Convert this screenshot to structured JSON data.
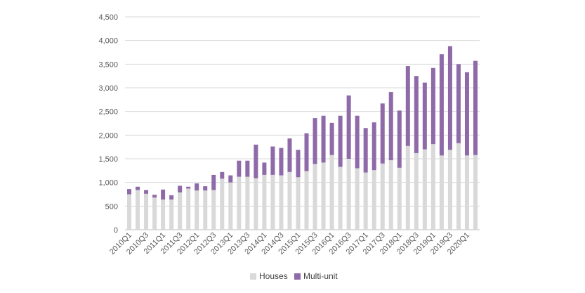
{
  "chart_data": {
    "type": "bar",
    "stacked": true,
    "categories": [
      "2010Q1",
      "2010Q2",
      "2010Q3",
      "2010Q4",
      "2011Q1",
      "2011Q2",
      "2011Q3",
      "2011Q4",
      "2012Q1",
      "2012Q2",
      "2012Q3",
      "2012Q4",
      "2013Q1",
      "2013Q2",
      "2013Q3",
      "2013Q4",
      "2014Q1",
      "2014Q2",
      "2014Q3",
      "2014Q4",
      "2015Q1",
      "2015Q2",
      "2015Q3",
      "2015Q4",
      "2016Q1",
      "2016Q2",
      "2016Q3",
      "2016Q4",
      "2017Q1",
      "2017Q2",
      "2017Q3",
      "2017Q4",
      "2018Q1",
      "2018Q2",
      "2018Q3",
      "2018Q4",
      "2019Q1",
      "2019Q2",
      "2019Q3",
      "2019Q4",
      "2020Q1",
      "2020Q2"
    ],
    "x_tick_labels": [
      "2010Q1",
      "2010Q3",
      "2011Q1",
      "2011Q3",
      "2012Q1",
      "2012Q3",
      "2013Q1",
      "2013Q3",
      "2014Q1",
      "2014Q3",
      "2015Q1",
      "2015Q3",
      "2016Q1",
      "2016Q3",
      "2017Q1",
      "2017Q3",
      "2018Q1",
      "2018Q3",
      "2019Q1",
      "2019Q3",
      "2020Q1"
    ],
    "series": [
      {
        "name": "Houses",
        "color": "#d9d9d9",
        "values": [
          750,
          840,
          760,
          680,
          640,
          640,
          790,
          870,
          830,
          830,
          840,
          1080,
          1000,
          1120,
          1120,
          1090,
          1160,
          1160,
          1150,
          1220,
          1110,
          1240,
          1390,
          1420,
          1580,
          1330,
          1500,
          1300,
          1210,
          1260,
          1400,
          1470,
          1310,
          1770,
          1620,
          1700,
          1810,
          1570,
          1690,
          1830,
          1570,
          1580
        ]
      },
      {
        "name": "Multi-unit",
        "color": "#8f6aa8",
        "values": [
          110,
          70,
          80,
          60,
          210,
          90,
          140,
          40,
          150,
          90,
          320,
          140,
          150,
          340,
          340,
          710,
          260,
          600,
          580,
          710,
          580,
          800,
          970,
          990,
          680,
          1080,
          1340,
          1110,
          940,
          1010,
          1270,
          1440,
          1210,
          1690,
          1630,
          1410,
          1610,
          2140,
          2190,
          1670,
          1760,
          1990
        ]
      }
    ],
    "y_ticks": [
      "0",
      "500",
      "1,000",
      "1,500",
      "2,000",
      "2,500",
      "3,000",
      "3,500",
      "4,000",
      "4,500"
    ],
    "ylim": [
      0,
      4500
    ],
    "title": "",
    "xlabel": "",
    "ylabel": "",
    "grid": true,
    "legend_position": "bottom-center"
  }
}
